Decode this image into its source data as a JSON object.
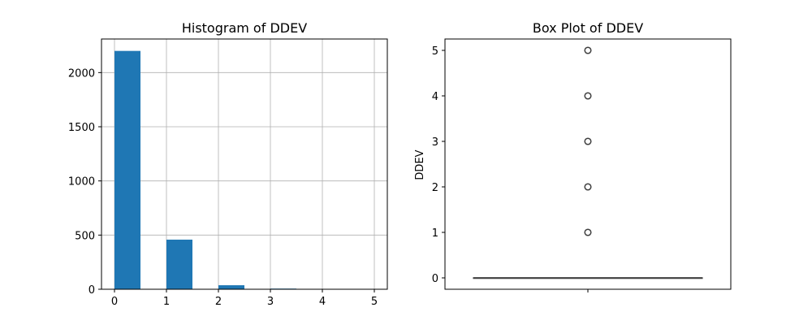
{
  "chart_data": [
    {
      "type": "bar",
      "title": "Histogram of DDEV",
      "xlabel": "",
      "ylabel": "",
      "grid": true,
      "color": "#1f77b4",
      "bins": [
        {
          "x0": 0.0,
          "x1": 0.5,
          "count": 2200
        },
        {
          "x0": 0.5,
          "x1": 1.0,
          "count": 0
        },
        {
          "x0": 1.0,
          "x1": 1.5,
          "count": 458
        },
        {
          "x0": 1.5,
          "x1": 2.0,
          "count": 0
        },
        {
          "x0": 2.0,
          "x1": 2.5,
          "count": 37
        },
        {
          "x0": 2.5,
          "x1": 3.0,
          "count": 0
        },
        {
          "x0": 3.0,
          "x1": 3.5,
          "count": 6
        },
        {
          "x0": 3.5,
          "x1": 4.0,
          "count": 0
        },
        {
          "x0": 4.0,
          "x1": 4.5,
          "count": 1
        },
        {
          "x0": 4.5,
          "x1": 5.0,
          "count": 1
        }
      ],
      "xlim": [
        -0.25,
        5.25
      ],
      "ylim": [
        0,
        2310
      ],
      "xticks": [
        0,
        1,
        2,
        3,
        4,
        5
      ],
      "yticks": [
        0,
        500,
        1000,
        1500,
        2000
      ]
    },
    {
      "type": "box",
      "title": "Box Plot of DDEV",
      "ylabel": "DDEV",
      "xlabel": "",
      "grid": false,
      "median": 0,
      "q1": 0,
      "q3": 0,
      "whisker_low": 0,
      "whisker_high": 0,
      "outliers": [
        1,
        2,
        3,
        4,
        5
      ],
      "ylim": [
        -0.25,
        5.25
      ],
      "yticks": [
        0,
        1,
        2,
        3,
        4,
        5
      ]
    }
  ]
}
